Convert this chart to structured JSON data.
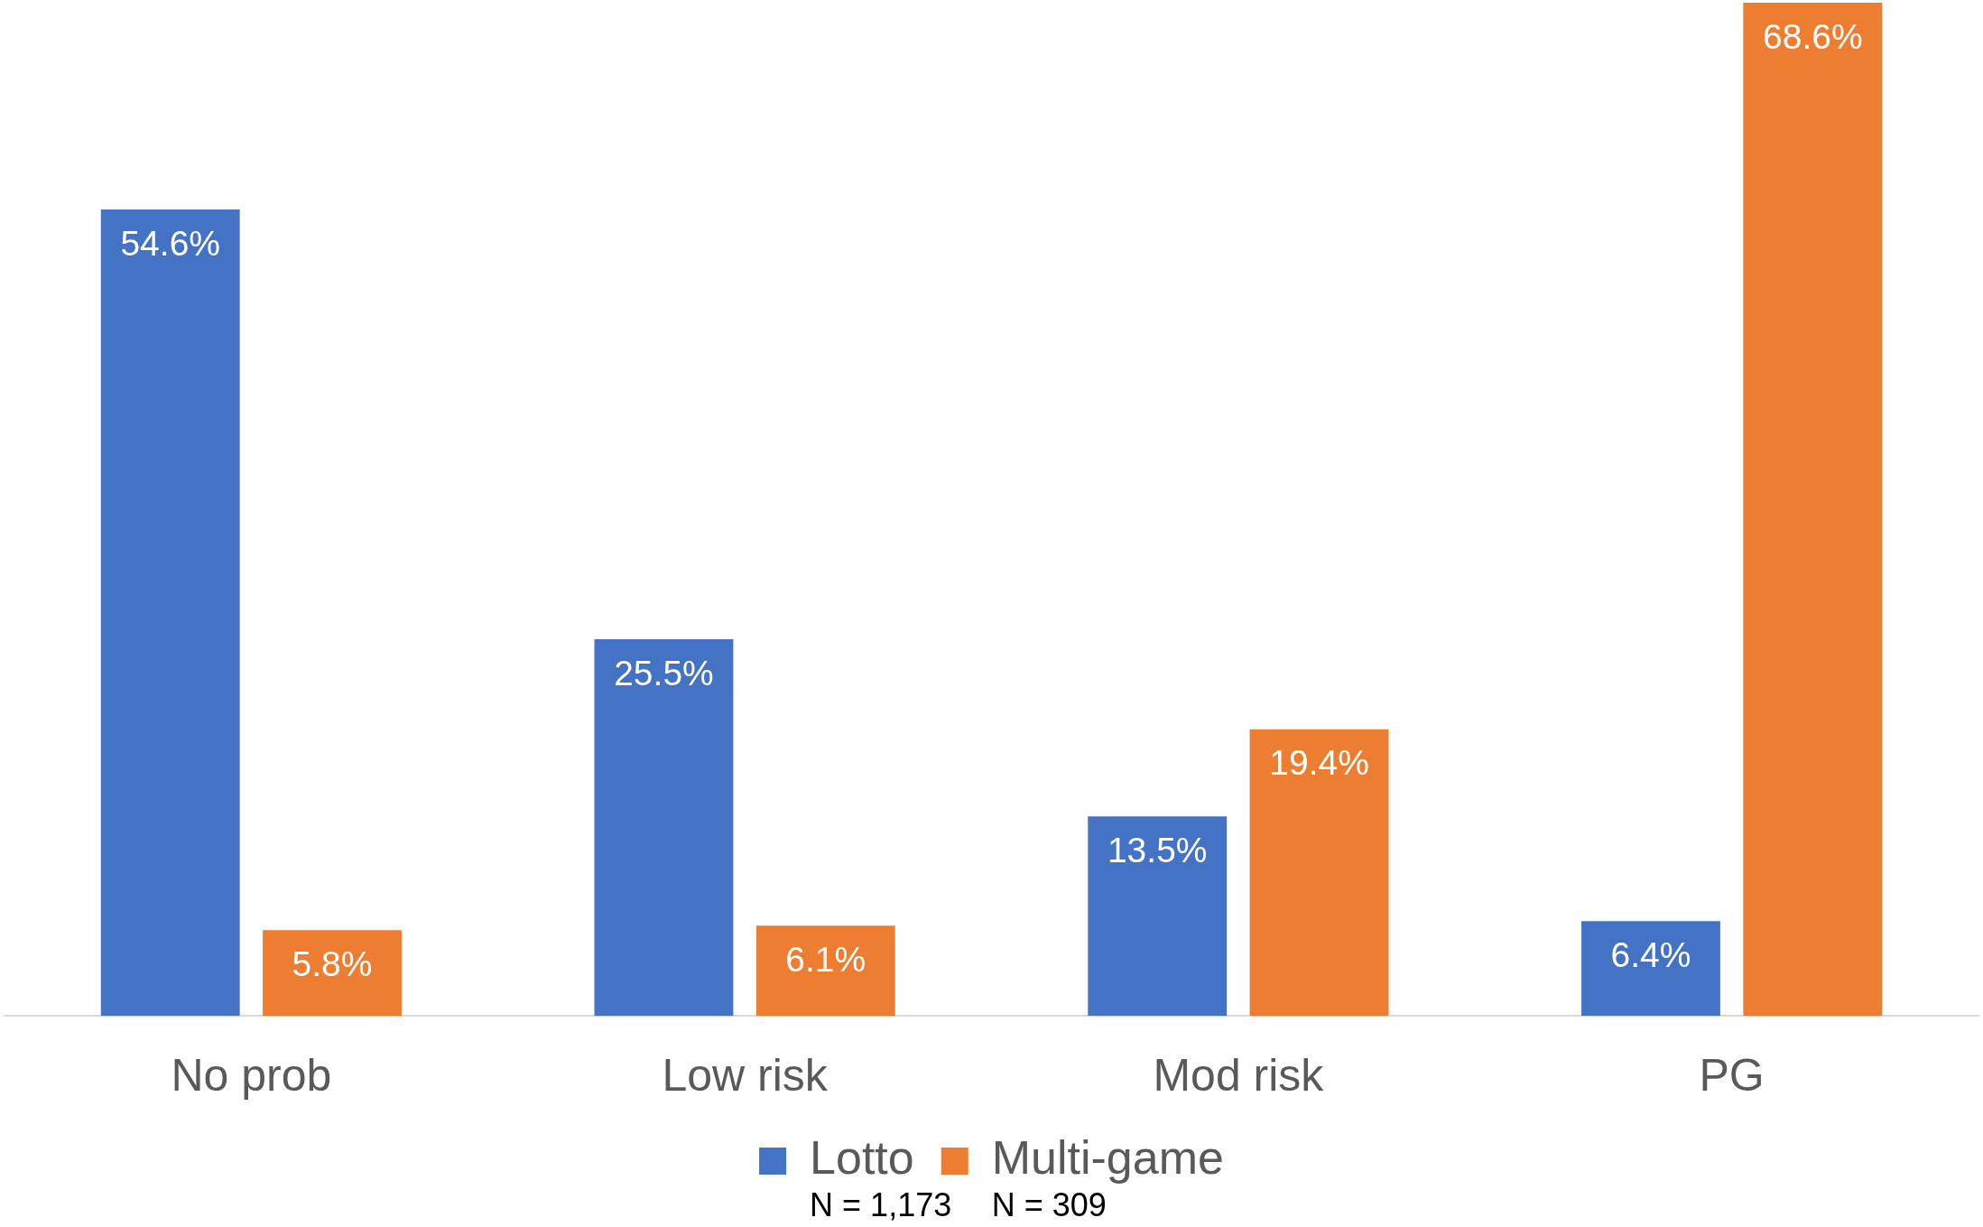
{
  "chart_data": {
    "type": "bar",
    "categories": [
      "No prob",
      "Low risk",
      "Mod risk",
      "PG"
    ],
    "series": [
      {
        "name": "Lotto",
        "color": "#4472c4",
        "values": [
          54.6,
          25.5,
          13.5,
          6.4
        ],
        "value_labels": [
          "54.6%",
          "25.5%",
          "13.5%",
          "6.4%"
        ]
      },
      {
        "name": "Multi-game",
        "color": "#ed7d31",
        "values": [
          5.8,
          6.1,
          19.4,
          68.6
        ],
        "value_labels": [
          "5.8%",
          "6.1%",
          "19.4%",
          "68.6%"
        ]
      }
    ],
    "legend": "bottom",
    "annotations": [
      "N = 1,173",
      "N = 309"
    ]
  }
}
